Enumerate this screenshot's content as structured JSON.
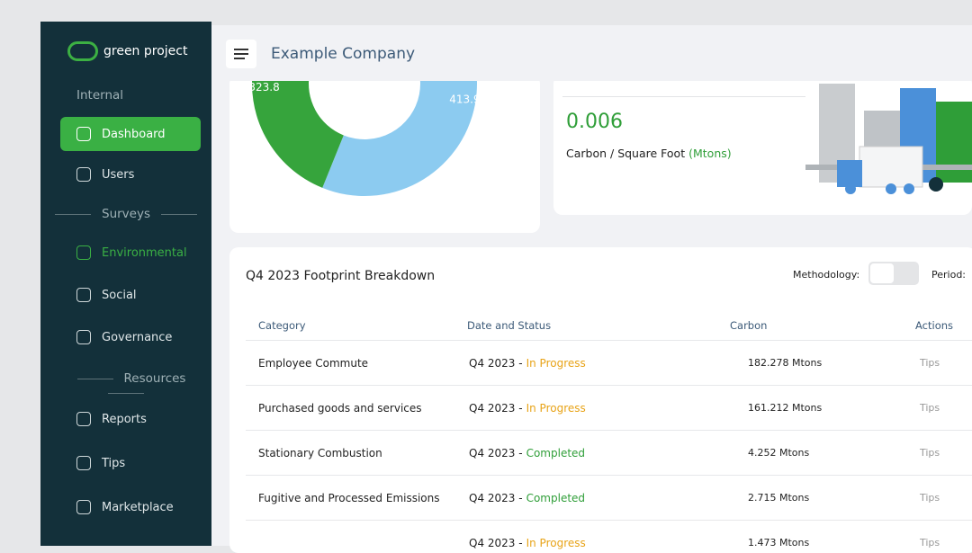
{
  "sidebar": {
    "brand": "green project",
    "section_internal": "Internal",
    "internal_items": [
      "Dashboard",
      "Users"
    ],
    "section_surveys": "Surveys",
    "survey_items": [
      "Environmental",
      "Social",
      "Governance"
    ],
    "section_resources": "Resources",
    "resource_items": [
      "Reports",
      "Tips",
      "Marketplace"
    ]
  },
  "header": {
    "title": "Example Company"
  },
  "chart_data": {
    "type": "donut",
    "values": [
      413.9,
      323.8
    ],
    "value_labels": [
      "413.9",
      "323.8"
    ],
    "colors": [
      "#8ccbf0",
      "#36a43c"
    ]
  },
  "kpi": {
    "value": "0.006",
    "label": "Carbon / Square Foot",
    "unit": "(Mtons)"
  },
  "table": {
    "title": "Q4 2023 Footprint Breakdown",
    "methodology_label": "Methodology:",
    "period_label": "Period:",
    "columns": [
      "Category",
      "Date and Status",
      "Carbon",
      "Actions"
    ],
    "rows": [
      {
        "category": "Employee Commute",
        "date": "Q4 2023 -",
        "status": "In Progress",
        "carbon": "182.278 Mtons",
        "action": "Tips"
      },
      {
        "category": "Purchased goods and services",
        "date": "Q4 2023 -",
        "status": "In Progress",
        "carbon": "161.212 Mtons",
        "action": "Tips"
      },
      {
        "category": "Stationary Combustion",
        "date": "Q4 2023 -",
        "status": "Completed",
        "carbon": "4.252 Mtons",
        "action": "Tips"
      },
      {
        "category": "Fugitive and Processed Emissions",
        "date": "Q4 2023 -",
        "status": "Completed",
        "carbon": "2.715 Mtons",
        "action": "Tips"
      },
      {
        "date": "Q4 2023 -",
        "status": "In Progress",
        "carbon": "1.473 Mtons",
        "action": "Tips"
      }
    ]
  }
}
